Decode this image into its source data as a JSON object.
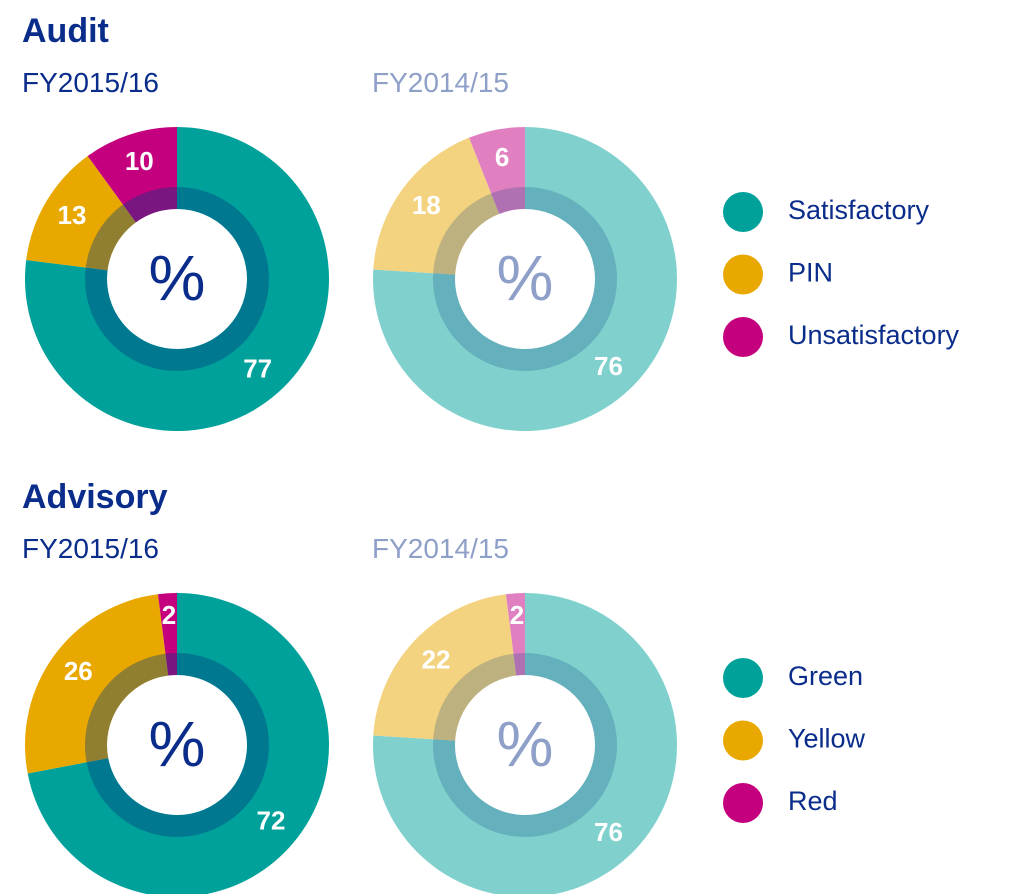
{
  "chart_data": [
    {
      "type": "donut",
      "title": "Audit",
      "center_label": "%",
      "categories": [
        "Satisfactory",
        "PIN",
        "Unsatisfactory"
      ],
      "series": [
        {
          "name": "FY2015/16",
          "colors": [
            "#00a19a",
            "#e8a800",
            "#c4007f"
          ],
          "values": [
            77,
            13,
            10
          ]
        },
        {
          "name": "FY2014/15",
          "colors": [
            "#80d1cd",
            "#f3d37f",
            "#e180c0"
          ],
          "values": [
            76,
            18,
            6
          ]
        }
      ]
    },
    {
      "type": "donut",
      "title": "Advisory",
      "center_label": "%",
      "categories": [
        "Green",
        "Yellow",
        "Red"
      ],
      "series": [
        {
          "name": "FY2015/16",
          "colors": [
            "#00a19a",
            "#e8a800",
            "#c4007f"
          ],
          "values": [
            72,
            26,
            2
          ]
        },
        {
          "name": "FY2014/15",
          "colors": [
            "#80d1cd",
            "#f3d37f",
            "#e180c0"
          ],
          "values": [
            76,
            22,
            2
          ]
        }
      ]
    }
  ]
}
